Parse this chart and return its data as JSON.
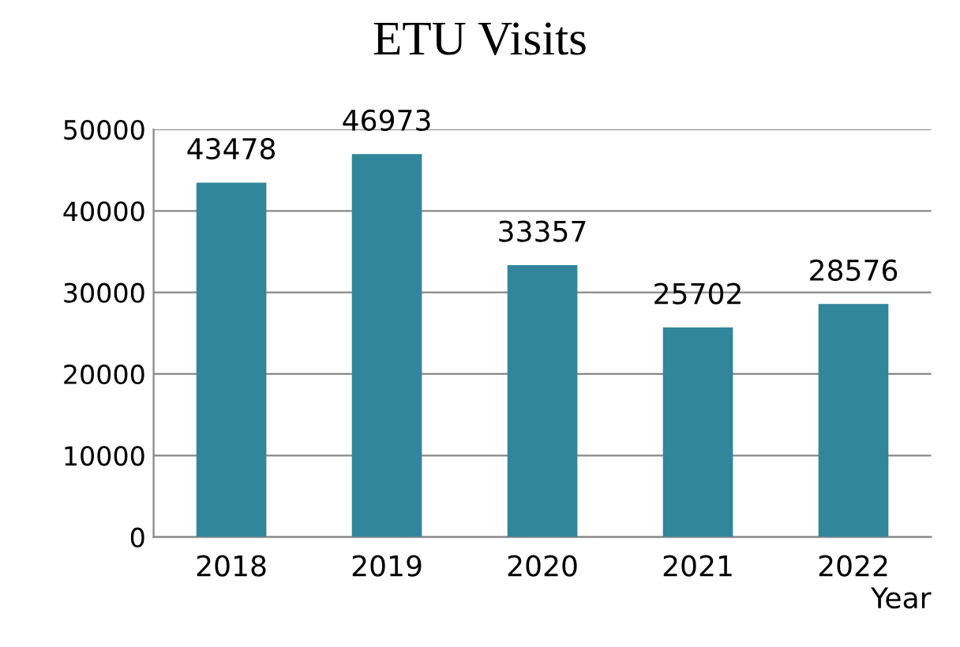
{
  "chart_data": {
    "type": "bar",
    "title": "ETU Visits",
    "xlabel": "Year",
    "categories": [
      "2018",
      "2019",
      "2020",
      "2021",
      "2022"
    ],
    "values": [
      43478,
      46973,
      33357,
      25702,
      28576
    ],
    "color": "#31869b",
    "ylim": [
      0,
      50000
    ],
    "yticks": [
      0,
      10000,
      20000,
      30000,
      40000,
      50000
    ],
    "grid": "y",
    "data_labels": true
  }
}
